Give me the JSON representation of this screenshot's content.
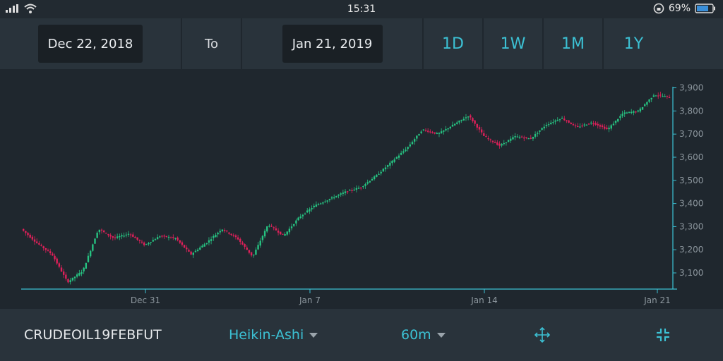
{
  "status_bar": {
    "time": "15:31",
    "battery": "69%"
  },
  "toolbar": {
    "from_date": "Dec 22, 2018",
    "to_label": "To",
    "to_date": "Jan 21, 2019",
    "ranges": [
      "1D",
      "1W",
      "1M",
      "1Y"
    ]
  },
  "chart_data": {
    "type": "candlestick",
    "style": "Heikin-Ashi",
    "y_ticks": [
      "3,100",
      "3,200",
      "3,300",
      "3,400",
      "3,500",
      "3,600",
      "3,700",
      "3,800",
      "3,900"
    ],
    "ylim": [
      3030,
      3920
    ],
    "x_ticks": [
      "Dec 31",
      "Jan 7",
      "Jan 14",
      "Jan 21"
    ],
    "up_color": "#26c281",
    "down_color": "#e0205a",
    "trend_close": [
      3290,
      3230,
      3180,
      3060,
      3110,
      3290,
      3250,
      3270,
      3220,
      3260,
      3250,
      3180,
      3230,
      3290,
      3250,
      3170,
      3310,
      3260,
      3340,
      3390,
      3420,
      3450,
      3470,
      3520,
      3580,
      3640,
      3720,
      3700,
      3740,
      3780,
      3690,
      3650,
      3690,
      3680,
      3740,
      3770,
      3730,
      3750,
      3720,
      3790,
      3800,
      3870,
      3860
    ]
  },
  "bottom_bar": {
    "symbol": "CRUDEOIL19FEBFUT",
    "chart_type": "Heikin-Ashi",
    "interval": "60m"
  }
}
